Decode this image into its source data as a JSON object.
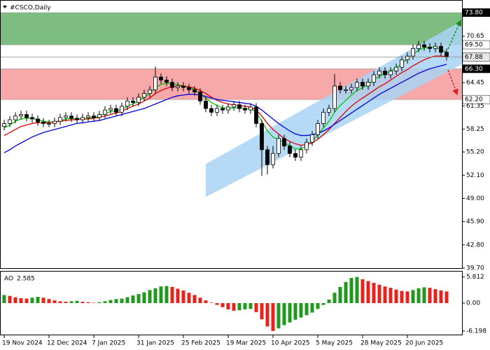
{
  "chart_data": [
    {
      "type": "candlestick",
      "title": "#CSCO,Daily",
      "categories": [
        "19 Nov 2024",
        null,
        null,
        null,
        null,
        null,
        null,
        null,
        "12 Dec 2024",
        null,
        null,
        null,
        null,
        null,
        null,
        null,
        "7 Jan 2025",
        null,
        null,
        null,
        null,
        null,
        null,
        null,
        "31 Jan 2025",
        null,
        null,
        null,
        null,
        null,
        null,
        null,
        "25 Feb 2025",
        null,
        null,
        null,
        null,
        null,
        null,
        null,
        "19 Mar 2025",
        null,
        null,
        null,
        null,
        null,
        null,
        null,
        "10 Apr 2025",
        null,
        null,
        null,
        null,
        null,
        null,
        null,
        "5 May 2025",
        null,
        null,
        null,
        null,
        null,
        null,
        null,
        "28 May 2025",
        null,
        null,
        null,
        null,
        null,
        null,
        null,
        "20 Jun 2025",
        null,
        null,
        null,
        null,
        null,
        null,
        null
      ],
      "open": [
        58.6,
        59.0,
        59.5,
        60.0,
        60.2,
        59.8,
        59.6,
        59.2,
        59.0,
        59.0,
        59.3,
        59.8,
        60.0,
        59.7,
        59.5,
        59.8,
        60.0,
        59.8,
        60.2,
        60.8,
        61.0,
        60.5,
        61.3,
        62.0,
        61.8,
        62.5,
        63.0,
        63.5,
        65.2,
        64.8,
        64.5,
        63.8,
        64.0,
        63.8,
        63.5,
        63.2,
        62.0,
        61.0,
        60.5,
        61.0,
        60.8,
        61.2,
        61.5,
        61.0,
        60.8,
        61.2,
        59.0,
        55.5,
        53.5,
        55.0,
        57.0,
        56.0,
        55.0,
        54.5,
        55.5,
        56.5,
        57.5,
        59.0,
        60.5,
        61.0,
        64.0,
        63.5,
        63.5,
        63.8,
        64.5,
        64.0,
        64.5,
        65.5,
        66.0,
        65.5,
        66.0,
        66.5,
        67.5,
        68.0,
        69.0,
        69.5,
        69.2,
        69.0,
        69.3,
        68.5
      ],
      "high": [
        59.5,
        60.0,
        60.5,
        60.7,
        60.7,
        60.3,
        60.1,
        59.7,
        59.5,
        59.8,
        60.3,
        60.5,
        60.5,
        60.2,
        60.3,
        60.5,
        60.5,
        60.7,
        61.3,
        61.5,
        61.5,
        61.8,
        62.5,
        62.5,
        63.0,
        63.5,
        64.0,
        66.6,
        65.7,
        65.3,
        65.0,
        64.5,
        64.5,
        64.3,
        64.0,
        63.7,
        62.5,
        61.5,
        61.5,
        61.5,
        61.7,
        62.0,
        62.0,
        61.5,
        61.7,
        61.7,
        59.5,
        56.0,
        56.0,
        57.5,
        57.5,
        56.5,
        55.5,
        56.0,
        57.0,
        58.0,
        59.5,
        61.0,
        61.5,
        65.6,
        64.5,
        64.0,
        64.3,
        65.0,
        65.0,
        65.0,
        66.0,
        66.5,
        66.5,
        66.5,
        67.0,
        68.0,
        68.5,
        69.5,
        70.0,
        70.0,
        69.7,
        69.8,
        69.8,
        69.0
      ],
      "low": [
        58.1,
        58.5,
        59.0,
        59.5,
        59.3,
        59.1,
        58.7,
        58.5,
        58.5,
        58.5,
        58.8,
        59.3,
        59.2,
        59.0,
        59.0,
        59.3,
        59.3,
        59.3,
        59.7,
        60.3,
        60.0,
        60.0,
        60.8,
        61.3,
        61.3,
        62.0,
        62.5,
        63.0,
        64.3,
        64.0,
        63.3,
        63.3,
        63.3,
        63.0,
        62.7,
        61.5,
        60.5,
        60.0,
        60.0,
        60.3,
        60.3,
        60.7,
        60.5,
        60.3,
        60.3,
        58.5,
        52.0,
        52.2,
        53.0,
        54.5,
        55.5,
        54.5,
        54.0,
        54.0,
        55.0,
        56.0,
        57.0,
        58.5,
        60.0,
        60.5,
        63.0,
        63.0,
        63.0,
        63.3,
        63.5,
        63.5,
        64.0,
        65.0,
        65.0,
        65.0,
        65.5,
        66.0,
        67.0,
        67.5,
        68.5,
        68.7,
        68.5,
        68.5,
        68.0,
        67.4
      ],
      "close": [
        59.0,
        59.5,
        60.0,
        60.2,
        59.8,
        59.6,
        59.2,
        59.0,
        59.0,
        59.3,
        59.8,
        60.0,
        59.7,
        59.5,
        59.8,
        60.0,
        59.8,
        60.2,
        60.8,
        61.0,
        60.5,
        61.3,
        62.0,
        61.8,
        62.5,
        63.0,
        63.5,
        65.2,
        64.8,
        64.5,
        63.8,
        64.0,
        63.8,
        63.5,
        63.2,
        62.0,
        61.0,
        60.5,
        61.0,
        60.8,
        61.2,
        61.5,
        61.0,
        60.8,
        61.2,
        59.0,
        55.5,
        53.5,
        55.0,
        57.0,
        56.0,
        55.0,
        54.5,
        55.5,
        56.5,
        57.5,
        59.0,
        60.5,
        61.0,
        64.0,
        63.5,
        63.5,
        63.8,
        64.5,
        64.0,
        64.5,
        65.5,
        66.0,
        65.5,
        66.0,
        66.5,
        67.5,
        68.0,
        69.0,
        69.5,
        69.2,
        69.0,
        69.3,
        68.5,
        67.88
      ],
      "series": [
        {
          "color": "#00c800",
          "values": [
            58.4,
            58.8,
            59.3,
            59.6,
            59.7,
            59.7,
            59.5,
            59.3,
            59.2,
            59.2,
            59.4,
            59.6,
            59.7,
            59.6,
            59.6,
            59.7,
            59.8,
            60.0,
            60.3,
            60.6,
            60.7,
            60.9,
            61.3,
            61.6,
            62.0,
            62.5,
            63.0,
            63.8,
            64.2,
            64.4,
            64.3,
            64.2,
            64.0,
            63.8,
            63.5,
            63.0,
            62.4,
            61.8,
            61.4,
            61.1,
            61.0,
            61.1,
            61.1,
            61.0,
            61.0,
            60.5,
            59.3,
            58.0,
            57.2,
            56.8,
            56.5,
            56.0,
            55.6,
            55.6,
            56.0,
            56.6,
            57.5,
            58.4,
            59.3,
            60.5,
            61.4,
            62.1,
            62.8,
            63.4,
            63.8,
            64.2,
            64.8,
            65.3,
            65.6,
            66.0,
            66.4,
            67.0,
            67.6,
            68.2,
            68.8,
            69.1,
            69.2,
            69.2,
            68.9,
            68.5
          ]
        },
        {
          "color": "#e00000",
          "values": [
            57.4,
            57.8,
            58.2,
            58.6,
            58.8,
            59.0,
            59.1,
            59.1,
            59.1,
            59.2,
            59.3,
            59.4,
            59.5,
            59.5,
            59.6,
            59.6,
            59.7,
            59.8,
            60.0,
            60.2,
            60.4,
            60.6,
            61.0,
            61.3,
            61.6,
            62.0,
            62.4,
            63.0,
            63.4,
            63.7,
            63.9,
            64.0,
            64.0,
            63.9,
            63.7,
            63.4,
            63.0,
            62.5,
            62.1,
            61.8,
            61.6,
            61.5,
            61.4,
            61.3,
            61.2,
            60.8,
            60.0,
            59.0,
            58.2,
            57.6,
            57.0,
            56.6,
            56.3,
            56.1,
            56.2,
            56.4,
            56.9,
            57.5,
            58.2,
            59.0,
            59.8,
            60.6,
            61.3,
            61.9,
            62.4,
            62.9,
            63.4,
            63.9,
            64.3,
            64.8,
            65.3,
            65.8,
            66.2,
            66.7,
            67.1,
            67.5,
            67.8,
            68.0,
            68.0,
            67.9
          ]
        },
        {
          "color": "#0000e0",
          "values": [
            55.1,
            55.5,
            56.0,
            56.4,
            56.8,
            57.2,
            57.5,
            57.8,
            58.0,
            58.2,
            58.4,
            58.6,
            58.8,
            59.0,
            59.1,
            59.2,
            59.3,
            59.4,
            59.6,
            59.8,
            60.0,
            60.2,
            60.4,
            60.6,
            60.8,
            61.0,
            61.3,
            61.6,
            61.9,
            62.2,
            62.5,
            62.7,
            62.8,
            62.9,
            62.9,
            62.8,
            62.6,
            62.4,
            62.2,
            62.1,
            62.0,
            61.9,
            61.8,
            61.7,
            61.6,
            61.3,
            60.8,
            60.2,
            59.6,
            59.0,
            58.5,
            58.0,
            57.6,
            57.4,
            57.4,
            57.5,
            57.7,
            58.0,
            58.4,
            58.9,
            59.4,
            59.9,
            60.4,
            60.9,
            61.4,
            61.9,
            62.4,
            62.9,
            63.3,
            63.7,
            64.1,
            64.5,
            64.9,
            65.3,
            65.7,
            66.0,
            66.3,
            66.5,
            66.7,
            66.9
          ]
        }
      ],
      "zones": [
        {
          "from": {
            "value": 69.5,
            "label": "69.50"
          },
          "to": {
            "value": 73.8,
            "label": "73.80"
          },
          "color": "#7dbd82"
        },
        {
          "from": {
            "value": 62.2,
            "label": "62.20"
          },
          "to": {
            "value": 66.3,
            "label": "66.30"
          },
          "color": "#f7a8a8"
        }
      ],
      "channel": {
        "x": [
          36,
          82
        ],
        "upper": [
          53.6,
          72.8
        ],
        "lower": [
          49.2,
          67.0
        ],
        "color": "#a9d4f5"
      },
      "ylim": [
        39.7,
        73.8
      ],
      "yticks": [
        70.65,
        67.55,
        64.45,
        61.35,
        58.25,
        {
          "value": 55.2,
          "label": "55.20"
        },
        {
          "value": 52.1,
          "label": "52.10"
        },
        {
          "value": 49.0,
          "label": "49.00"
        },
        {
          "value": 45.9,
          "label": "45.90"
        },
        {
          "value": 42.8,
          "label": "42.80"
        },
        {
          "value": 39.7,
          "label": "39.70"
        }
      ]
    },
    {
      "type": "bar",
      "name": "AO",
      "up_color": "#1f9a1f",
      "down_color": "#e8231e",
      "values": [
        1.8,
        1.6,
        1.3,
        1.1,
        1.0,
        1.2,
        1.4,
        1.2,
        0.9,
        0.6,
        0.4,
        0.3,
        0.4,
        0.5,
        0.3,
        0.2,
        0.1,
        0.2,
        0.4,
        0.7,
        0.9,
        1.0,
        1.3,
        1.7,
        2.0,
        2.4,
        2.9,
        3.3,
        3.7,
        3.8,
        3.6,
        3.2,
        2.8,
        2.3,
        1.8,
        1.2,
        0.6,
        0.1,
        -0.4,
        -0.9,
        -1.4,
        -1.7,
        -1.6,
        -1.4,
        -1.3,
        -2.0,
        -3.6,
        -5.2,
        -6.2,
        -5.6,
        -4.9,
        -4.3,
        -3.7,
        -3.2,
        -2.7,
        -2.1,
        -1.3,
        -0.4,
        0.8,
        2.3,
        3.6,
        4.7,
        5.6,
        5.8,
        5.3,
        4.9,
        4.5,
        4.1,
        3.7,
        3.4,
        3.0,
        2.7,
        2.6,
        2.9,
        3.3,
        3.5,
        3.4,
        3.1,
        2.8,
        2.585
      ],
      "ylim": [
        -7,
        7
      ],
      "yticks": [
        5.812,
        {
          "value": 0,
          "label": "0.00"
        },
        -6.198
      ]
    }
  ]
}
